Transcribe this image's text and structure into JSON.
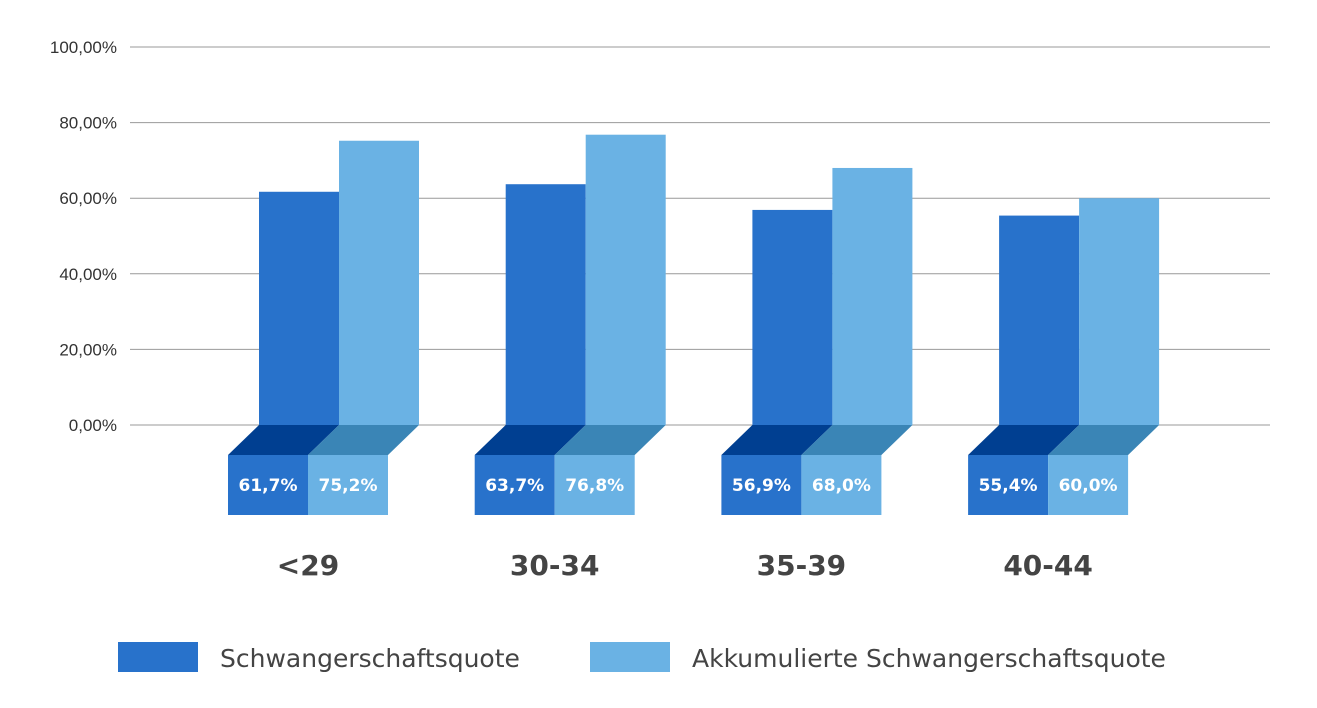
{
  "chart_data": {
    "type": "bar",
    "categories": [
      "<29",
      "30-34",
      "35-39",
      "40-44"
    ],
    "series": [
      {
        "name": "Schwangerschaftsquote",
        "values": [
          61.7,
          63.7,
          56.9,
          55.4
        ],
        "labels": [
          "61,7%",
          "63,7%",
          "56,9%",
          "55,4%"
        ],
        "color": "#2872CB"
      },
      {
        "name": "Akkumulierte Schwangerschaftsquote",
        "values": [
          75.2,
          76.8,
          68.0,
          60.0
        ],
        "labels": [
          "75,2%",
          "76,8%",
          "68,0%",
          "60,0%"
        ],
        "color": "#6AB2E4"
      }
    ],
    "y_ticks": [
      "0,00%",
      "20,00%",
      "40,00%",
      "60,00%",
      "80,00%",
      "100,00%"
    ],
    "ylim": [
      0,
      100
    ],
    "grid": true,
    "legend_position": "bottom",
    "colors": {
      "grid": "#999999",
      "base_top_dark": "#003F91",
      "base_top_light": "#3A85B6"
    }
  }
}
